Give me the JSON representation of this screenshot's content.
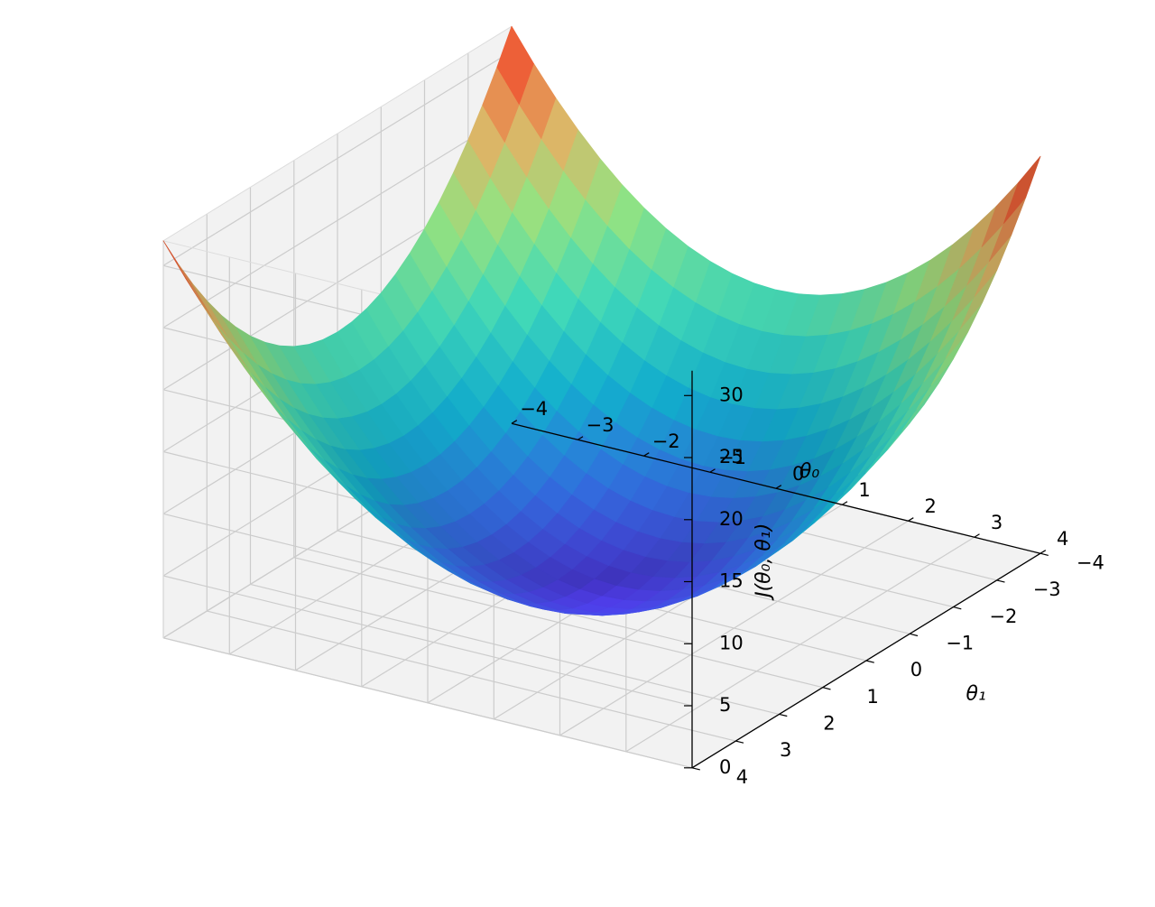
{
  "chart_data": {
    "type": "surface",
    "function": "theta0^2 + theta1^2",
    "colormap": "rainbow",
    "x": {
      "label": "θ₀",
      "range": [
        -4,
        4
      ],
      "ticks": [
        -4,
        -3,
        -2,
        -1,
        0,
        1,
        2,
        3,
        4
      ],
      "tick_labels": [
        "−4",
        "−3",
        "−2",
        "−1",
        "0",
        "1",
        "2",
        "3",
        "4"
      ]
    },
    "y": {
      "label": "θ₁",
      "range": [
        -4,
        4
      ],
      "ticks": [
        -4,
        -3,
        -2,
        -1,
        0,
        1,
        2,
        3,
        4
      ],
      "tick_labels": [
        "−4",
        "−3",
        "−2",
        "−1",
        "0",
        "1",
        "2",
        "3",
        "4"
      ]
    },
    "z": {
      "label": "J(θ₀, θ₁)",
      "range": [
        0,
        32
      ],
      "ticks": [
        0,
        5,
        10,
        15,
        20,
        25,
        30
      ],
      "tick_labels": [
        "0",
        "5",
        "10",
        "15",
        "20",
        "25",
        "30"
      ]
    },
    "grid": true,
    "pane_color": "#f2f2f2",
    "grid_color": "#cccccc"
  }
}
